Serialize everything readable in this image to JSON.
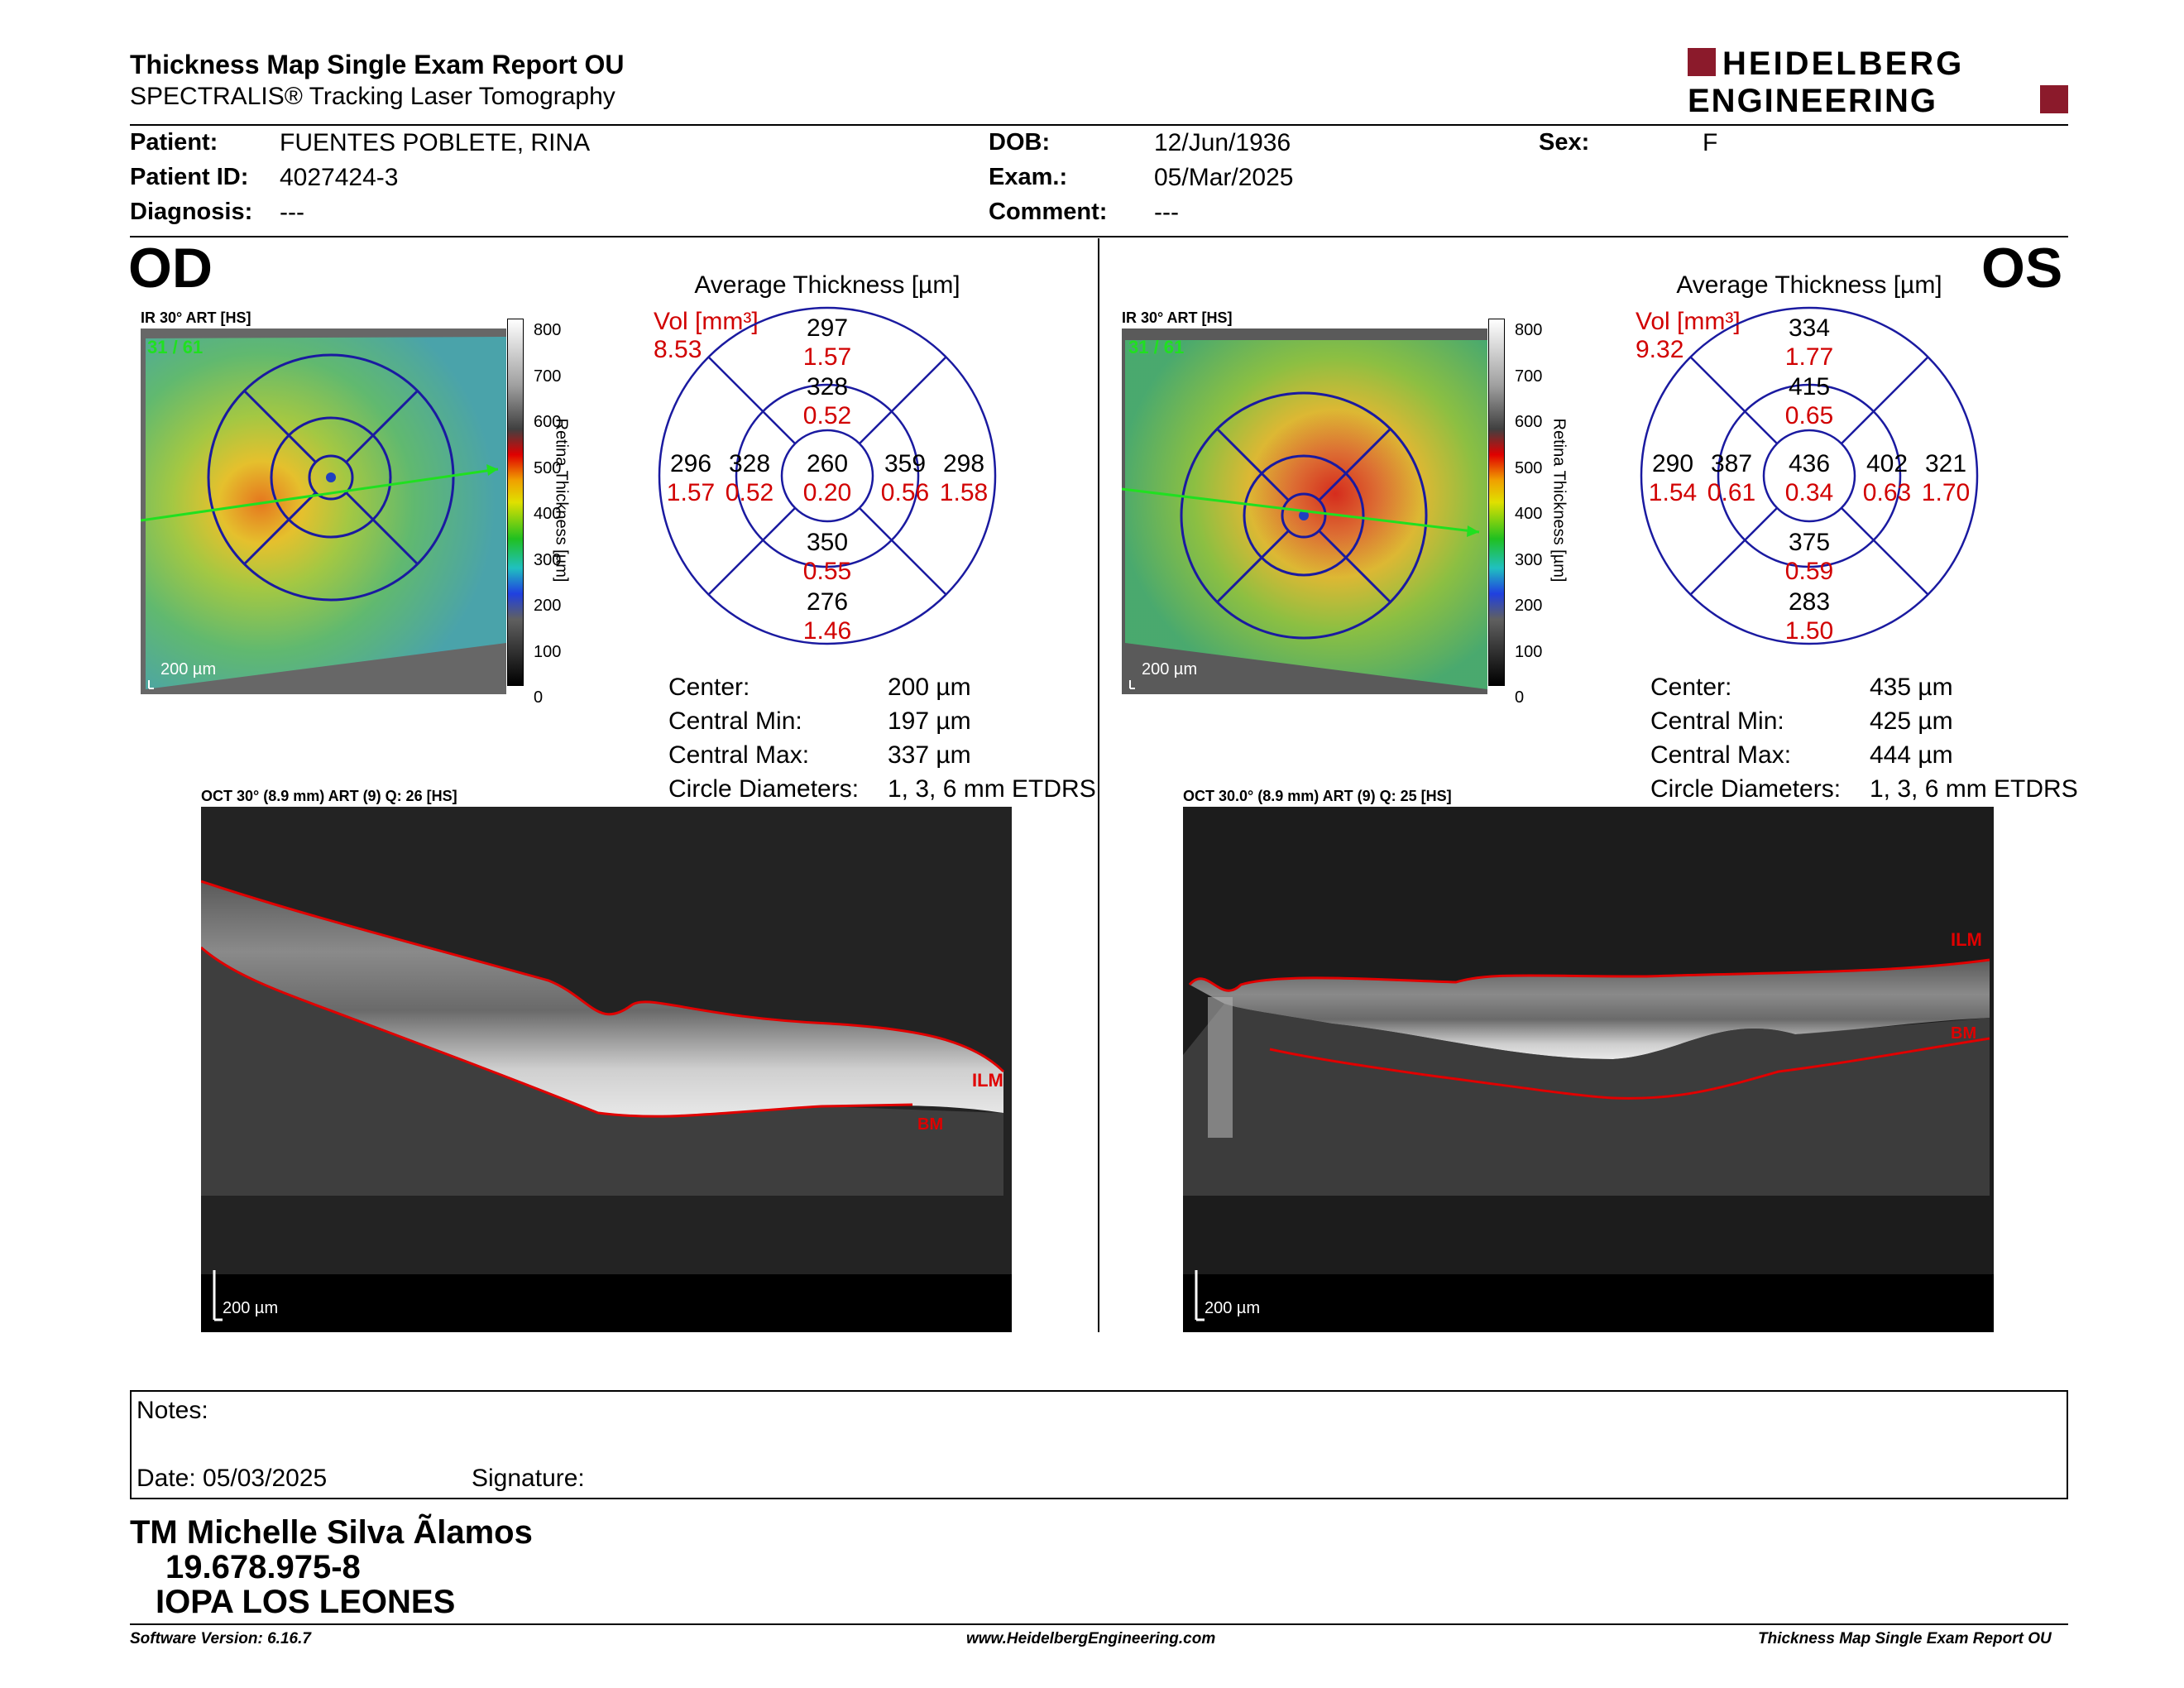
{
  "header": {
    "title": "Thickness Map Single Exam Report OU",
    "subtitle": "SPECTRALIS® Tracking Laser Tomography",
    "logo_line1": "HEIDELBERG",
    "logo_line2": "ENGINEERING"
  },
  "patient": {
    "patient_label": "Patient:",
    "patient_value": "FUENTES POBLETE, RINA",
    "id_label": "Patient ID:",
    "id_value": "4027424-3",
    "diag_label": "Diagnosis:",
    "diag_value": "---",
    "dob_label": "DOB:",
    "dob_value": "12/Jun/1936",
    "exam_label": "Exam.:",
    "exam_value": "05/Mar/2025",
    "comment_label": "Comment:",
    "comment_value": "---",
    "sex_label": "Sex:",
    "sex_value": "F"
  },
  "od": {
    "eye": "OD",
    "ir_label": "IR 30° ART [HS]",
    "ir_counter": "31 / 61",
    "scale": "200 µm",
    "colorbar_title": "Retina Thickness [µm]",
    "colorbar_ticks": [
      "800",
      "700",
      "600",
      "500",
      "400",
      "300",
      "200",
      "100",
      "0"
    ],
    "avg_title": "Average Thickness [µm]",
    "vol_label": "Vol [mm³]",
    "vol_value": "8.53",
    "sectors": {
      "outer_sup": [
        "297",
        "1.57"
      ],
      "inner_sup": [
        "328",
        "0.52"
      ],
      "outer_left": [
        "296",
        "1.57"
      ],
      "inner_left": [
        "328",
        "0.52"
      ],
      "center": [
        "260",
        "0.20"
      ],
      "inner_right": [
        "359",
        "0.56"
      ],
      "outer_right": [
        "298",
        "1.58"
      ],
      "inner_inf": [
        "350",
        "0.55"
      ],
      "outer_inf": [
        "276",
        "1.46"
      ]
    },
    "stats": [
      {
        "label": "Center:",
        "value": "200 µm"
      },
      {
        "label": "Central Min:",
        "value": "197 µm"
      },
      {
        "label": "Central Max:",
        "value": "337 µm"
      },
      {
        "label": "Circle Diameters:",
        "value": "1, 3, 6 mm ETDRS"
      }
    ],
    "oct_label": "OCT 30° (8.9 mm) ART (9) Q: 26 [HS]",
    "ilm": "ILM",
    "bm": "BM"
  },
  "os": {
    "eye": "OS",
    "ir_label": "IR 30° ART [HS]",
    "ir_counter": "31 / 61",
    "scale": "200 µm",
    "colorbar_title": "Retina Thickness [µm]",
    "colorbar_ticks": [
      "800",
      "700",
      "600",
      "500",
      "400",
      "300",
      "200",
      "100",
      "0"
    ],
    "avg_title": "Average Thickness [µm]",
    "vol_label": "Vol [mm³]",
    "vol_value": "9.32",
    "sectors": {
      "outer_sup": [
        "334",
        "1.77"
      ],
      "inner_sup": [
        "415",
        "0.65"
      ],
      "outer_left": [
        "290",
        "1.54"
      ],
      "inner_left": [
        "387",
        "0.61"
      ],
      "center": [
        "436",
        "0.34"
      ],
      "inner_right": [
        "402",
        "0.63"
      ],
      "outer_right": [
        "321",
        "1.70"
      ],
      "inner_inf": [
        "375",
        "0.59"
      ],
      "outer_inf": [
        "283",
        "1.50"
      ]
    },
    "stats": [
      {
        "label": "Center:",
        "value": "435 µm"
      },
      {
        "label": "Central Min:",
        "value": "425 µm"
      },
      {
        "label": "Central Max:",
        "value": "444 µm"
      },
      {
        "label": "Circle Diameters:",
        "value": "1, 3, 6 mm ETDRS"
      }
    ],
    "oct_label": "OCT 30.0° (8.9 mm) ART (9) Q: 25 [HS]",
    "ilm": "ILM",
    "bm": "BM"
  },
  "notes": {
    "notes_label": "Notes:",
    "date_label": "Date: 05/03/2025",
    "signature_label": "Signature:"
  },
  "signer": {
    "name": "TM Michelle Silva Ãlamos",
    "rut": "19.678.975-8",
    "org": "IOPA LOS LEONES"
  },
  "footer": {
    "software": "Software Version: 6.16.7",
    "website": "www.HeidelbergEngineering.com",
    "report": "Thickness Map Single Exam Report OU"
  },
  "colors": {
    "accent_red": "#d10000",
    "logo_red": "#8b1a2b",
    "grid_blue": "#1a1aa0"
  }
}
